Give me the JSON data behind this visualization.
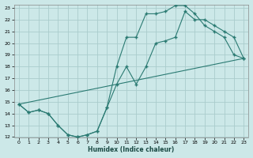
{
  "xlabel": "Humidex (Indice chaleur)",
  "bg_color": "#cce8e8",
  "grid_color": "#aacccc",
  "line_color": "#2a7a72",
  "xlim": [
    -0.5,
    23.5
  ],
  "ylim": [
    12,
    23.3
  ],
  "xticks": [
    0,
    1,
    2,
    3,
    4,
    5,
    6,
    7,
    8,
    9,
    10,
    11,
    12,
    13,
    14,
    15,
    16,
    17,
    18,
    19,
    20,
    21,
    22,
    23
  ],
  "yticks": [
    12,
    13,
    14,
    15,
    16,
    17,
    18,
    19,
    20,
    21,
    22,
    23
  ],
  "line1_x": [
    0,
    1,
    2,
    3,
    4,
    5,
    6,
    7,
    8,
    9,
    10,
    11,
    12,
    13,
    14,
    15,
    16,
    17,
    18,
    19,
    20,
    21,
    22,
    23
  ],
  "line1_y": [
    14.8,
    14.1,
    14.3,
    14.0,
    13.0,
    12.2,
    12.0,
    12.2,
    12.5,
    14.5,
    18.0,
    20.5,
    20.5,
    22.5,
    22.5,
    22.7,
    23.2,
    23.2,
    22.5,
    21.5,
    21.0,
    20.5,
    19.0,
    18.7
  ],
  "line2_x": [
    0,
    1,
    2,
    3,
    4,
    5,
    6,
    7,
    8,
    9,
    10,
    11,
    12,
    13,
    14,
    15,
    16,
    17,
    18,
    19,
    20,
    21,
    22,
    23
  ],
  "line2_y": [
    14.8,
    14.1,
    14.3,
    14.0,
    13.0,
    12.2,
    12.0,
    12.2,
    12.5,
    14.5,
    16.5,
    18.0,
    16.5,
    18.0,
    20.0,
    20.2,
    20.5,
    22.7,
    22.0,
    22.0,
    21.5,
    21.0,
    20.5,
    18.7
  ],
  "line3_x": [
    0,
    23
  ],
  "line3_y": [
    14.8,
    18.7
  ]
}
